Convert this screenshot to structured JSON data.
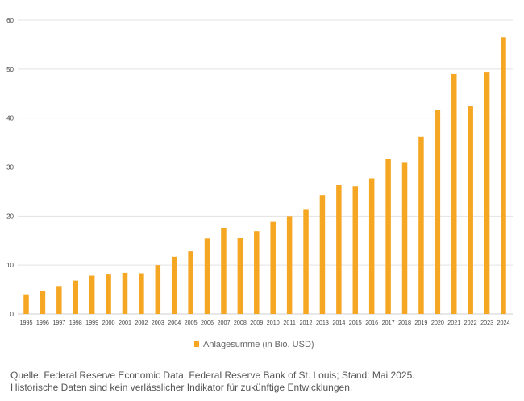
{
  "colors": {
    "bar": "#f5a623",
    "grid": "#e3e3e3",
    "axis": "#cfcfcf"
  },
  "chart_data": {
    "type": "bar",
    "categories": [
      "1995",
      "1996",
      "1997",
      "1998",
      "1999",
      "2000",
      "2001",
      "2002",
      "2003",
      "2004",
      "2005",
      "2006",
      "2007",
      "2008",
      "2009",
      "2010",
      "2011",
      "2012",
      "2013",
      "2014",
      "2015",
      "2016",
      "2017",
      "2018",
      "2019",
      "2020",
      "2021",
      "2022",
      "2023",
      "2024"
    ],
    "series": [
      {
        "name": "Anlagesumme (in Bio. USD)",
        "values": [
          4.0,
          4.6,
          5.7,
          6.8,
          7.8,
          8.2,
          8.4,
          8.3,
          10.0,
          11.7,
          12.8,
          15.4,
          17.6,
          15.5,
          16.9,
          18.8,
          20.0,
          21.3,
          24.3,
          26.3,
          26.1,
          27.7,
          31.6,
          31.0,
          36.2,
          41.6,
          49.0,
          42.4,
          49.3,
          56.5
        ]
      }
    ],
    "y_ticks": [
      "0",
      "10",
      "20",
      "30",
      "40",
      "50",
      "60"
    ],
    "ylim": [
      0,
      60
    ],
    "grid": true,
    "legend_position": "bottom"
  },
  "footnote": {
    "line1": "Quelle: Federal Reserve Economic Data, Federal Reserve Bank of St. Louis; Stand: Mai 2025.",
    "line2": "Historische Daten sind kein verlässlicher Indikator für zukünftige Entwicklungen."
  }
}
